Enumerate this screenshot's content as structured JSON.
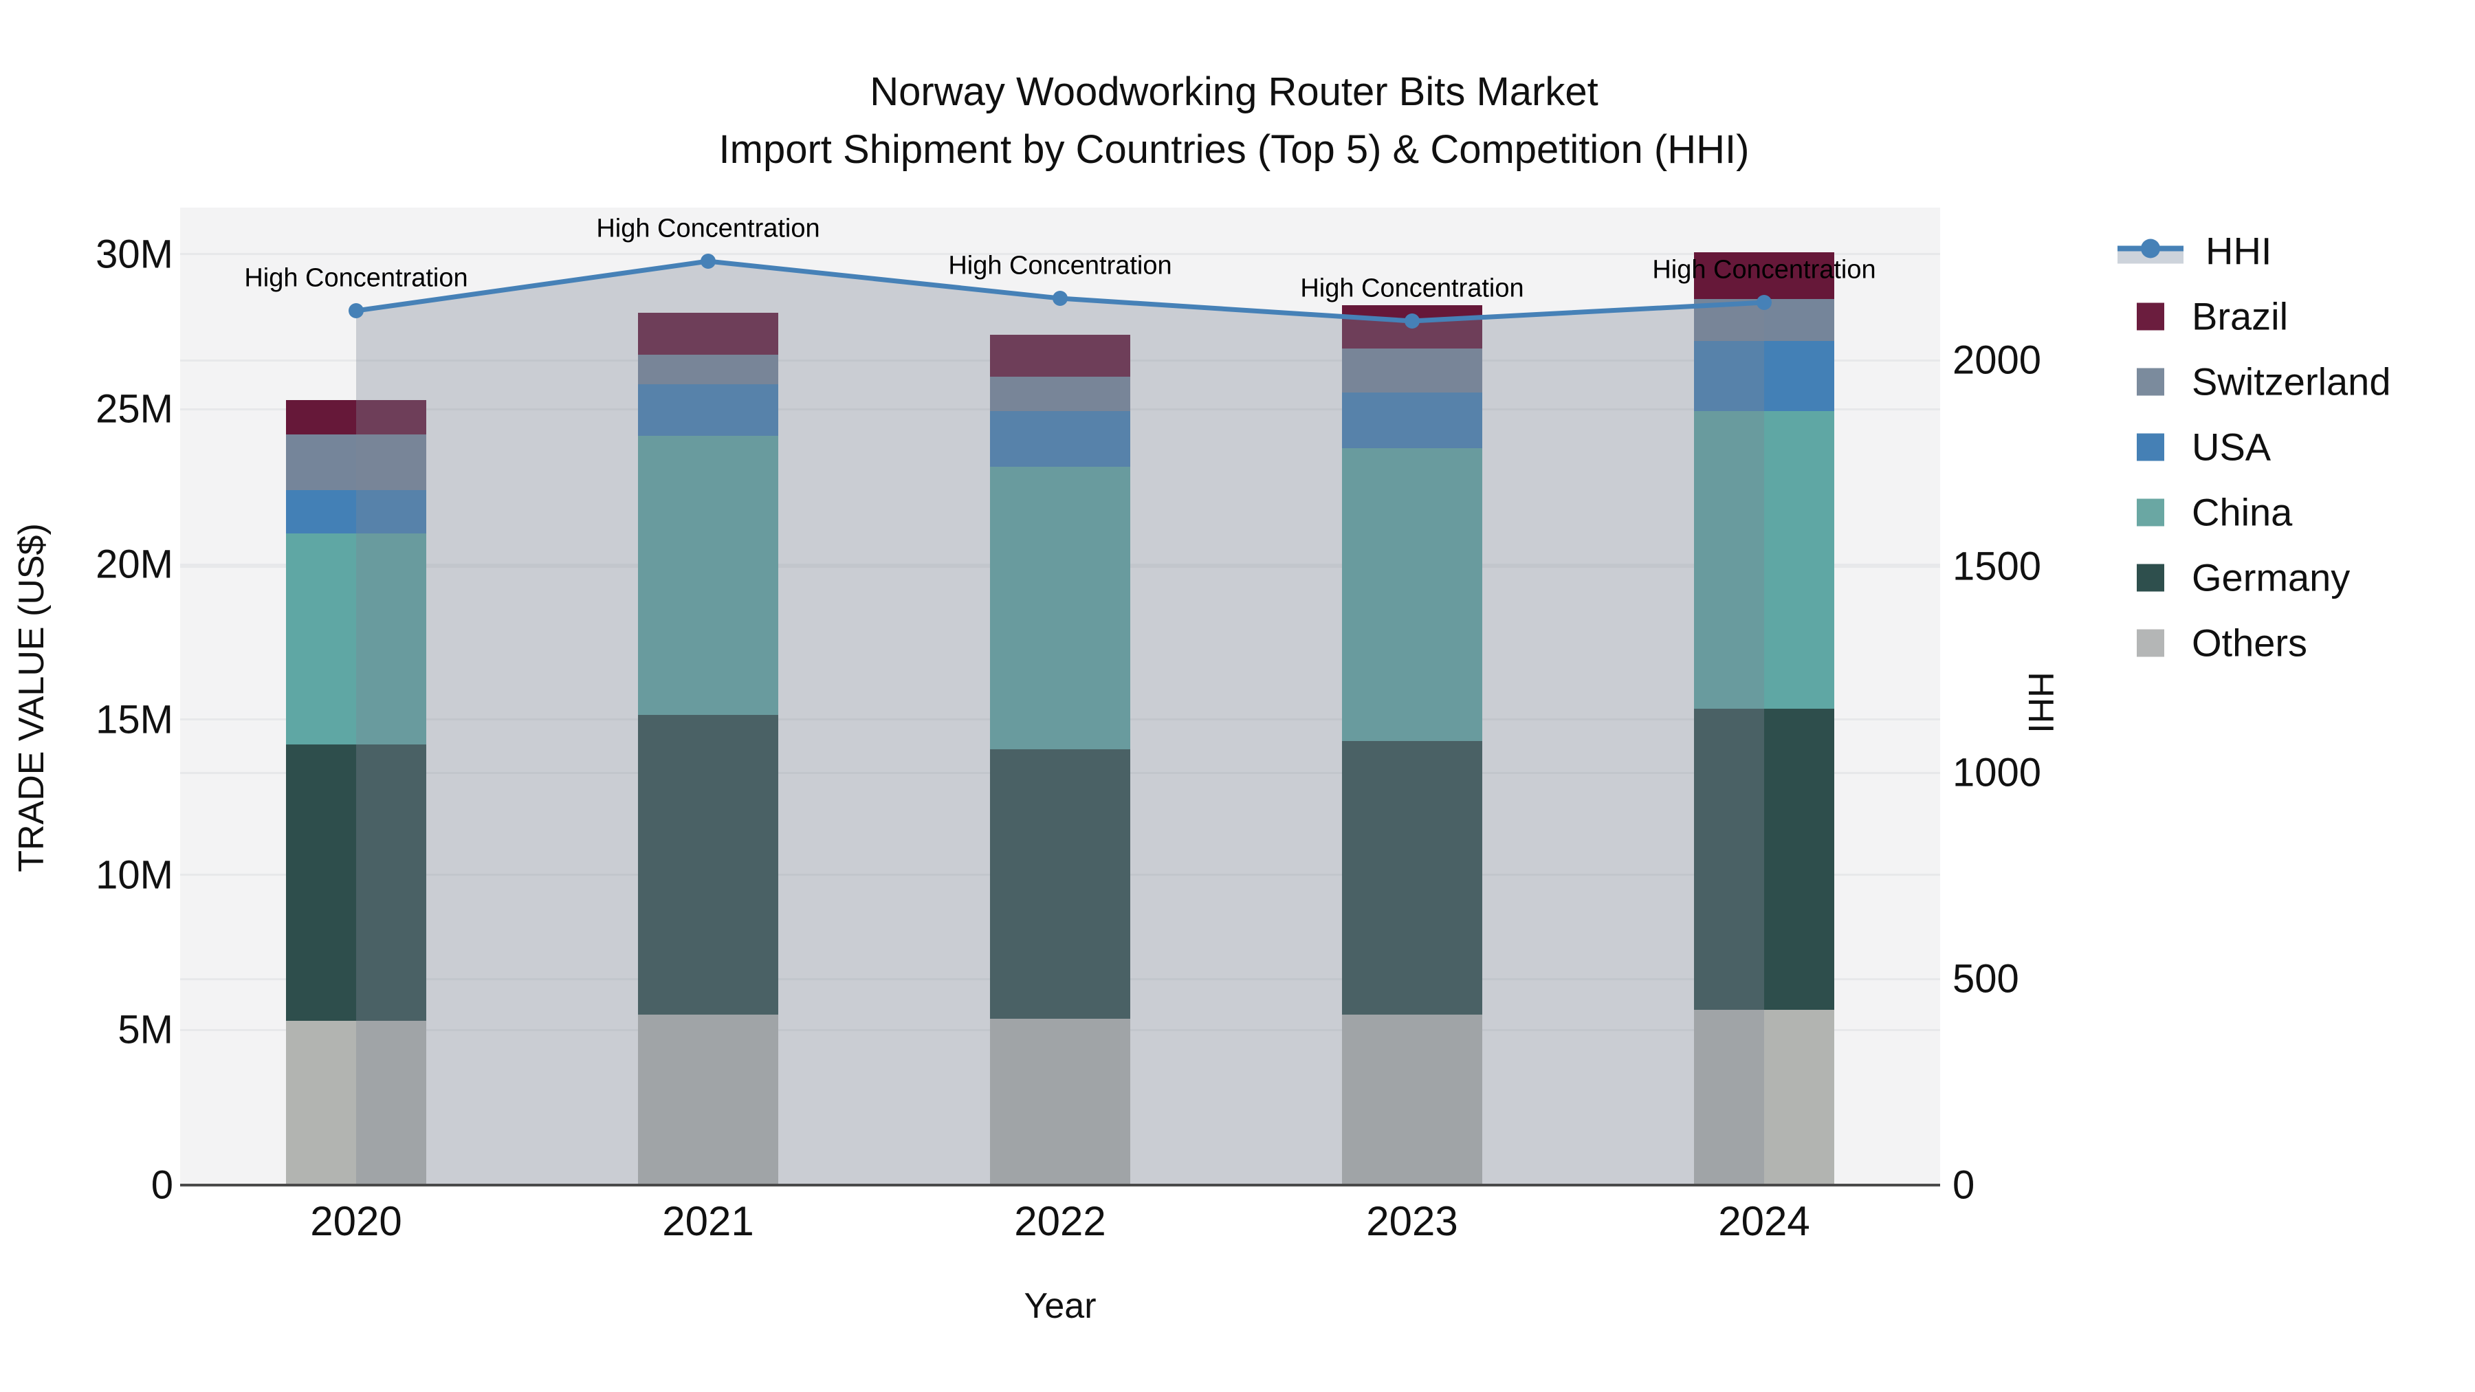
{
  "title": {
    "line1": "Norway Woodworking Router Bits Market",
    "line2": "Import Shipment by Countries (Top 5) & Competition (HHI)"
  },
  "colors": {
    "page_bg": "#ffffff",
    "plot_bg": "#f3f3f4",
    "gridline": "#e7e8ea",
    "axis_line": "#4a4a4a",
    "text": "#101010",
    "hhi_line": "#4681b7",
    "hhi_area_fill": "rgba(125,134,149,0.35)",
    "brazil": "#661839",
    "switzerland": "#75859a",
    "usa": "#4380b6",
    "china": "#5fa7a4",
    "germany": "#2e4e4c",
    "others": "#b2b4b1"
  },
  "legend": {
    "items": [
      {
        "label": "HHI",
        "type": "line",
        "color": "#4681b7",
        "fill": "#cdd3db"
      },
      {
        "label": "Brazil",
        "type": "swatch",
        "color": "#6b1d3e"
      },
      {
        "label": "Switzerland",
        "type": "swatch",
        "color": "#7b8b9d"
      },
      {
        "label": "USA",
        "type": "swatch",
        "color": "#4580b5"
      },
      {
        "label": "China",
        "type": "swatch",
        "color": "#6aa7a3"
      },
      {
        "label": "Germany",
        "type": "swatch",
        "color": "#2e4f4d"
      },
      {
        "label": "Others",
        "type": "swatch",
        "color": "#b4b6b6"
      }
    ]
  },
  "chart_data": {
    "type": "bar",
    "subtype": "stacked-bars-with-line-overlay",
    "title": "Norway Woodworking Router Bits Market — Import Shipment by Countries (Top 5) & Competition (HHI)",
    "categories": [
      "2020",
      "2021",
      "2022",
      "2023",
      "2024"
    ],
    "bar_value_unit": "million US$",
    "series": [
      {
        "name": "Others",
        "color": "#b2b4b1",
        "values": [
          5.3,
          5.5,
          5.35,
          5.5,
          5.65
        ]
      },
      {
        "name": "Germany",
        "color": "#2e4e4c",
        "values": [
          8.9,
          9.65,
          8.7,
          8.8,
          9.7
        ]
      },
      {
        "name": "China",
        "color": "#5fa7a4",
        "values": [
          6.8,
          9.0,
          9.1,
          9.45,
          9.6
        ]
      },
      {
        "name": "USA",
        "color": "#4380b6",
        "values": [
          1.4,
          1.65,
          1.8,
          1.8,
          2.25
        ]
      },
      {
        "name": "Switzerland",
        "color": "#75859a",
        "values": [
          1.8,
          0.95,
          1.1,
          1.4,
          1.35
        ]
      },
      {
        "name": "Brazil",
        "color": "#661839",
        "values": [
          1.1,
          1.35,
          1.35,
          1.4,
          1.5
        ]
      }
    ],
    "bar_totals_m": [
      25.3,
      28.1,
      27.4,
      28.35,
      30.05
    ],
    "line_series": {
      "name": "HHI",
      "axis": "right",
      "color": "#4681b7",
      "area_fill": "rgba(125,134,149,0.35)",
      "values": [
        2120,
        2240,
        2150,
        2095,
        2140
      ]
    },
    "annotations": [
      {
        "text": "High Concentration",
        "category": "2020"
      },
      {
        "text": "High Concentration",
        "category": "2021"
      },
      {
        "text": "High Concentration",
        "category": "2022"
      },
      {
        "text": "High Concentration",
        "category": "2023"
      },
      {
        "text": "High Concentration",
        "category": "2024"
      }
    ],
    "left_axis": {
      "title": "TRADE VALUE (US$)",
      "ticks": [
        {
          "label": "0",
          "value": 0
        },
        {
          "label": "5M",
          "value": 5
        },
        {
          "label": "10M",
          "value": 10
        },
        {
          "label": "15M",
          "value": 15
        },
        {
          "label": "20M",
          "value": 20
        },
        {
          "label": "25M",
          "value": 25
        },
        {
          "label": "30M",
          "value": 30
        }
      ],
      "range_m": [
        0,
        31.5
      ],
      "grid": true
    },
    "right_axis": {
      "title": "HHI",
      "ticks": [
        {
          "label": "0",
          "value": 0
        },
        {
          "label": "500",
          "value": 500
        },
        {
          "label": "1000",
          "value": 1000
        },
        {
          "label": "1500",
          "value": 1500
        },
        {
          "label": "2000",
          "value": 2000
        }
      ],
      "range": [
        0,
        2370
      ],
      "grid": true
    },
    "x_axis": {
      "title": "Year",
      "labels": [
        "2020",
        "2021",
        "2022",
        "2023",
        "2024"
      ]
    },
    "legend_position": "right",
    "legend_entries": [
      "HHI",
      "Brazil",
      "Switzerland",
      "USA",
      "China",
      "Germany",
      "Others"
    ]
  }
}
